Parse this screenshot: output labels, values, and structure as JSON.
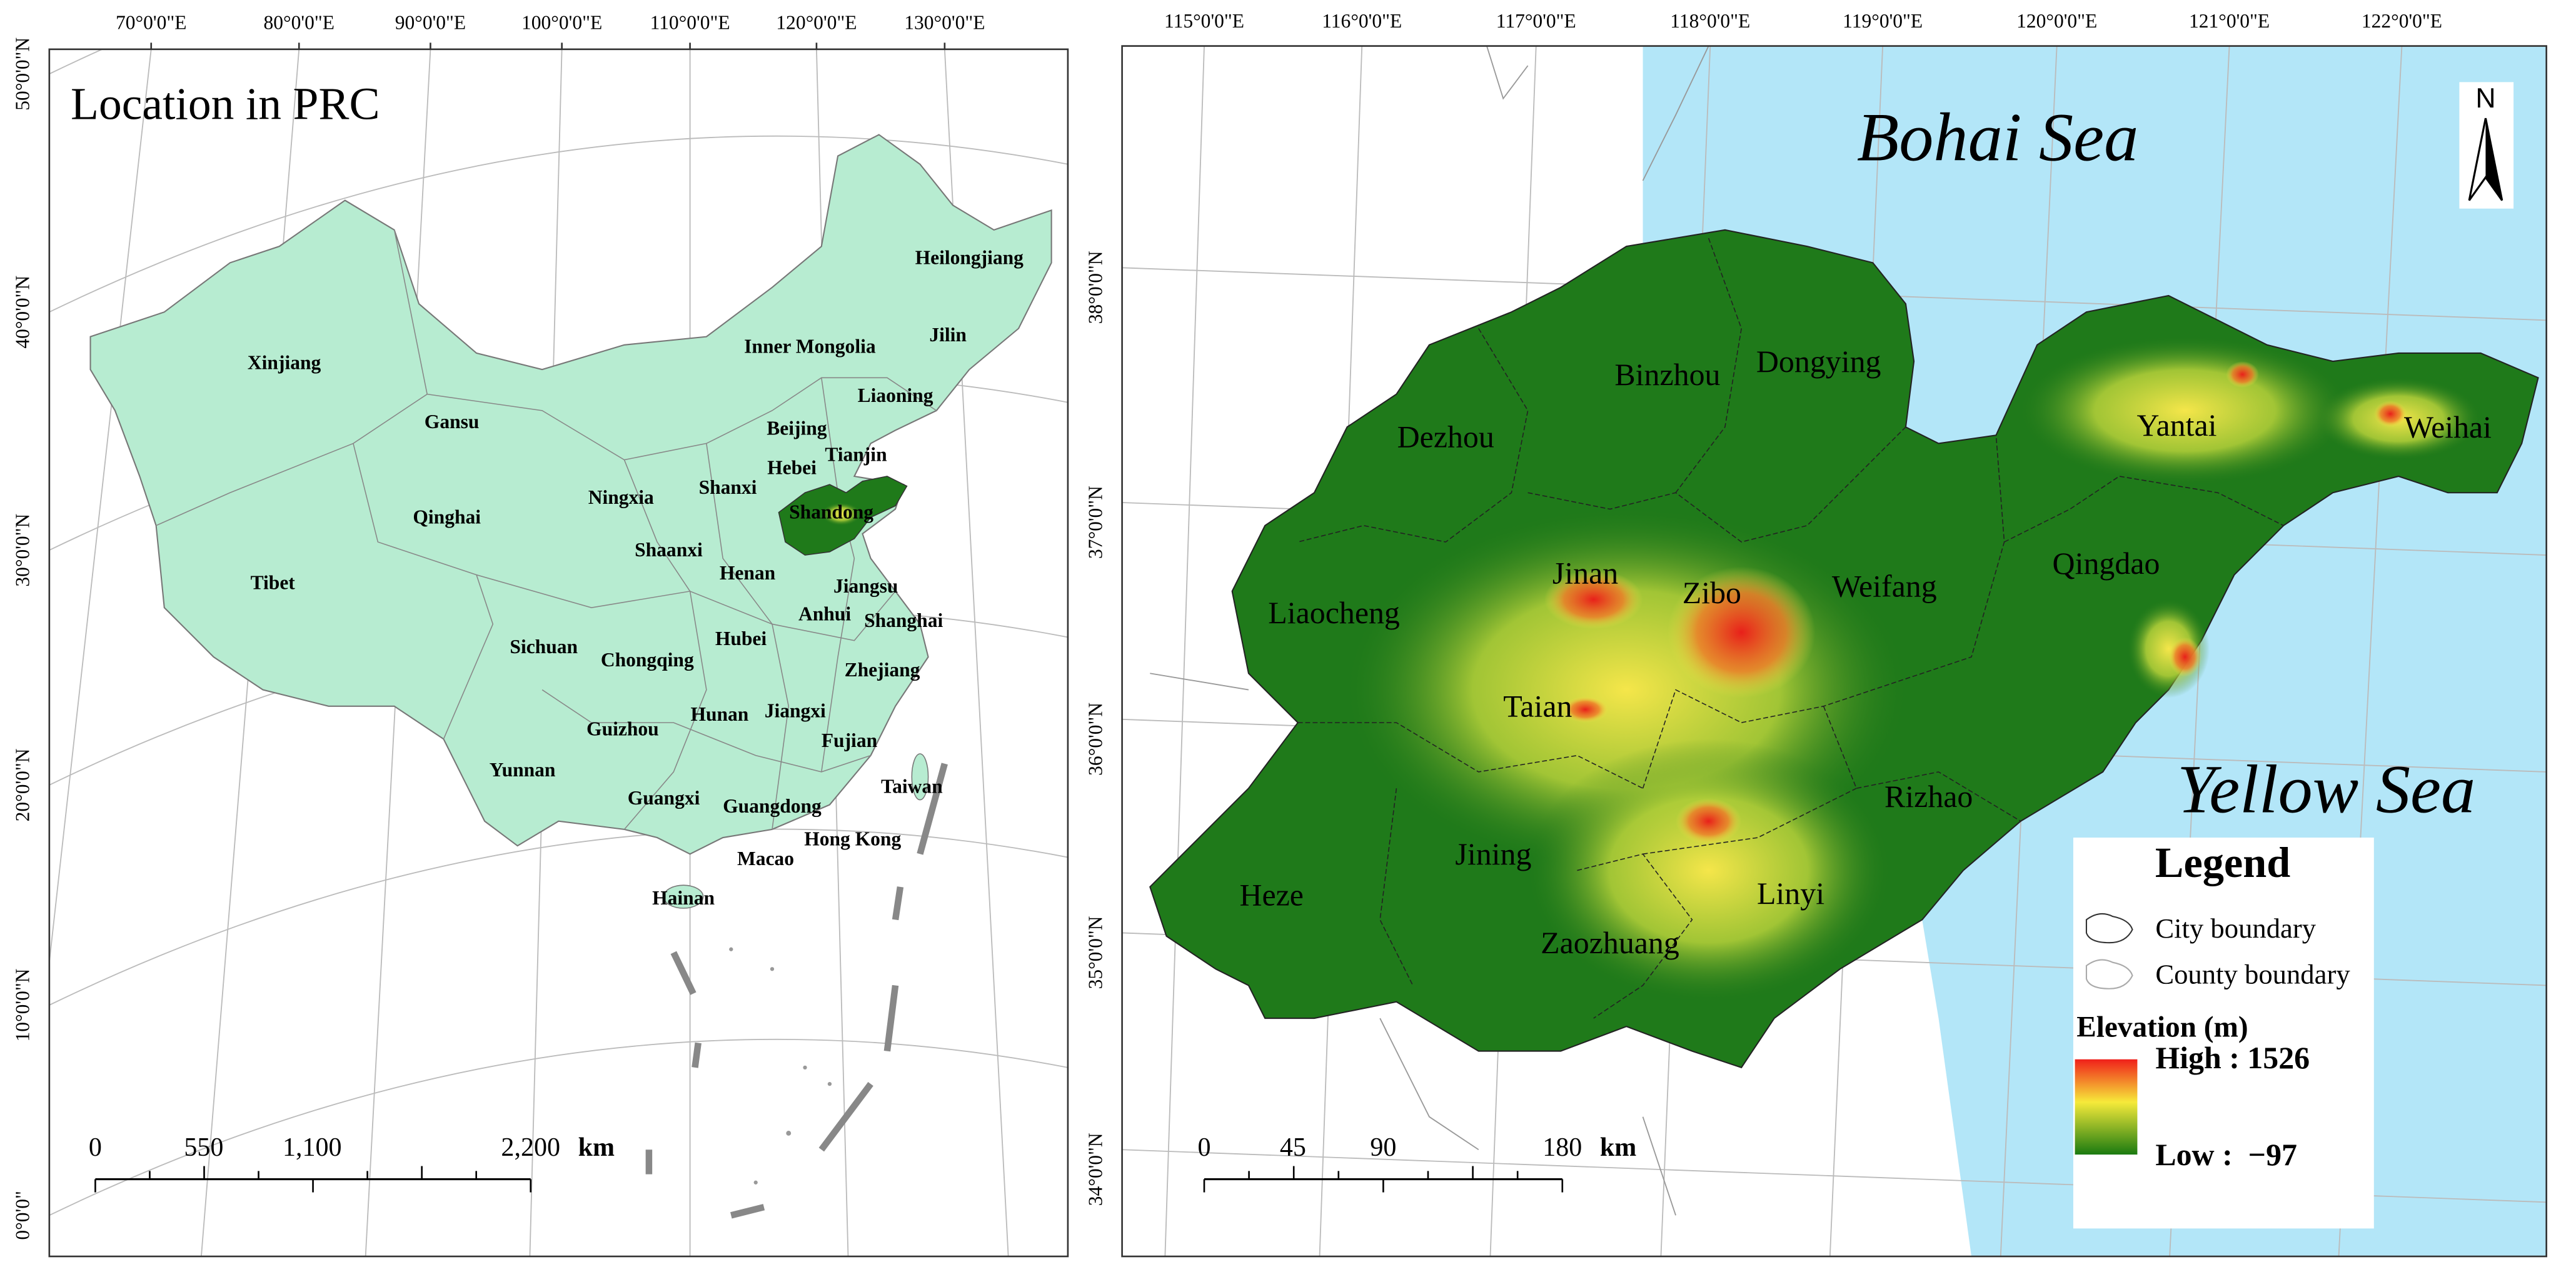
{
  "left_map": {
    "title": "Location in PRC",
    "longitude_labels": [
      "70°0'0\"E",
      "80°0'0\"E",
      "90°0'0\"E",
      "100°0'0\"E",
      "110°0'0\"E",
      "120°0'0\"E",
      "130°0'0\"E"
    ],
    "latitude_labels": [
      "50°0'0\"N",
      "40°0'0\"N",
      "30°0'0\"N",
      "20°0'0\"N",
      "10°0'0\"N",
      "0°0'0\""
    ],
    "region_labels": [
      "Heilongjiang",
      "Jilin",
      "Inner Mongolia",
      "Xinjiang",
      "Liaoning",
      "Gansu",
      "Beijing",
      "Tianjin",
      "Hebei",
      "Ningxia",
      "Shanxi",
      "Shandong",
      "Qinghai",
      "Shaanxi",
      "Tibet",
      "Henan",
      "Jiangsu",
      "Anhui",
      "Shanghai",
      "Sichuan",
      "Hubei",
      "Chongqing",
      "Zhejiang",
      "Guizhou",
      "Hunan",
      "Jiangxi",
      "Fujian",
      "Yunnan",
      "Taiwan",
      "Guangxi",
      "Guangdong",
      "Hong Kong",
      "Macao",
      "Hainan"
    ],
    "scale_bar": {
      "labels": [
        "0",
        "550",
        "1,100",
        "2,200"
      ],
      "unit": "km"
    }
  },
  "right_map": {
    "longitude_labels": [
      "115°0'0\"E",
      "116°0'0\"E",
      "117°0'0\"E",
      "118°0'0\"E",
      "119°0'0\"E",
      "120°0'0\"E",
      "121°0'0\"E",
      "122°0'0\"E"
    ],
    "latitude_labels": [
      "38°0'0\"N",
      "37°0'0\"N",
      "36°0'0\"N",
      "35°0'0\"N",
      "34°0'0\"N"
    ],
    "sea_labels": [
      "Bohai Sea",
      "Yellow Sea"
    ],
    "city_labels": [
      "Binzhou",
      "Dongying",
      "Dezhou",
      "Yantai",
      "Weihai",
      "Liaocheng",
      "Jinan",
      "Zibo",
      "Weifang",
      "Qingdao",
      "Taian",
      "Rizhao",
      "Jining",
      "Heze",
      "Linyi",
      "Zaozhuang"
    ],
    "north_arrow": "N",
    "scale_bar": {
      "labels": [
        "0",
        "45",
        "90",
        "180"
      ],
      "unit": "km"
    },
    "legend": {
      "title": "Legend",
      "items": [
        "City boundary",
        "County boundary"
      ],
      "elevation_title": "Elevation (m)",
      "high": "High : 1526",
      "low": "Low :  −97"
    }
  }
}
